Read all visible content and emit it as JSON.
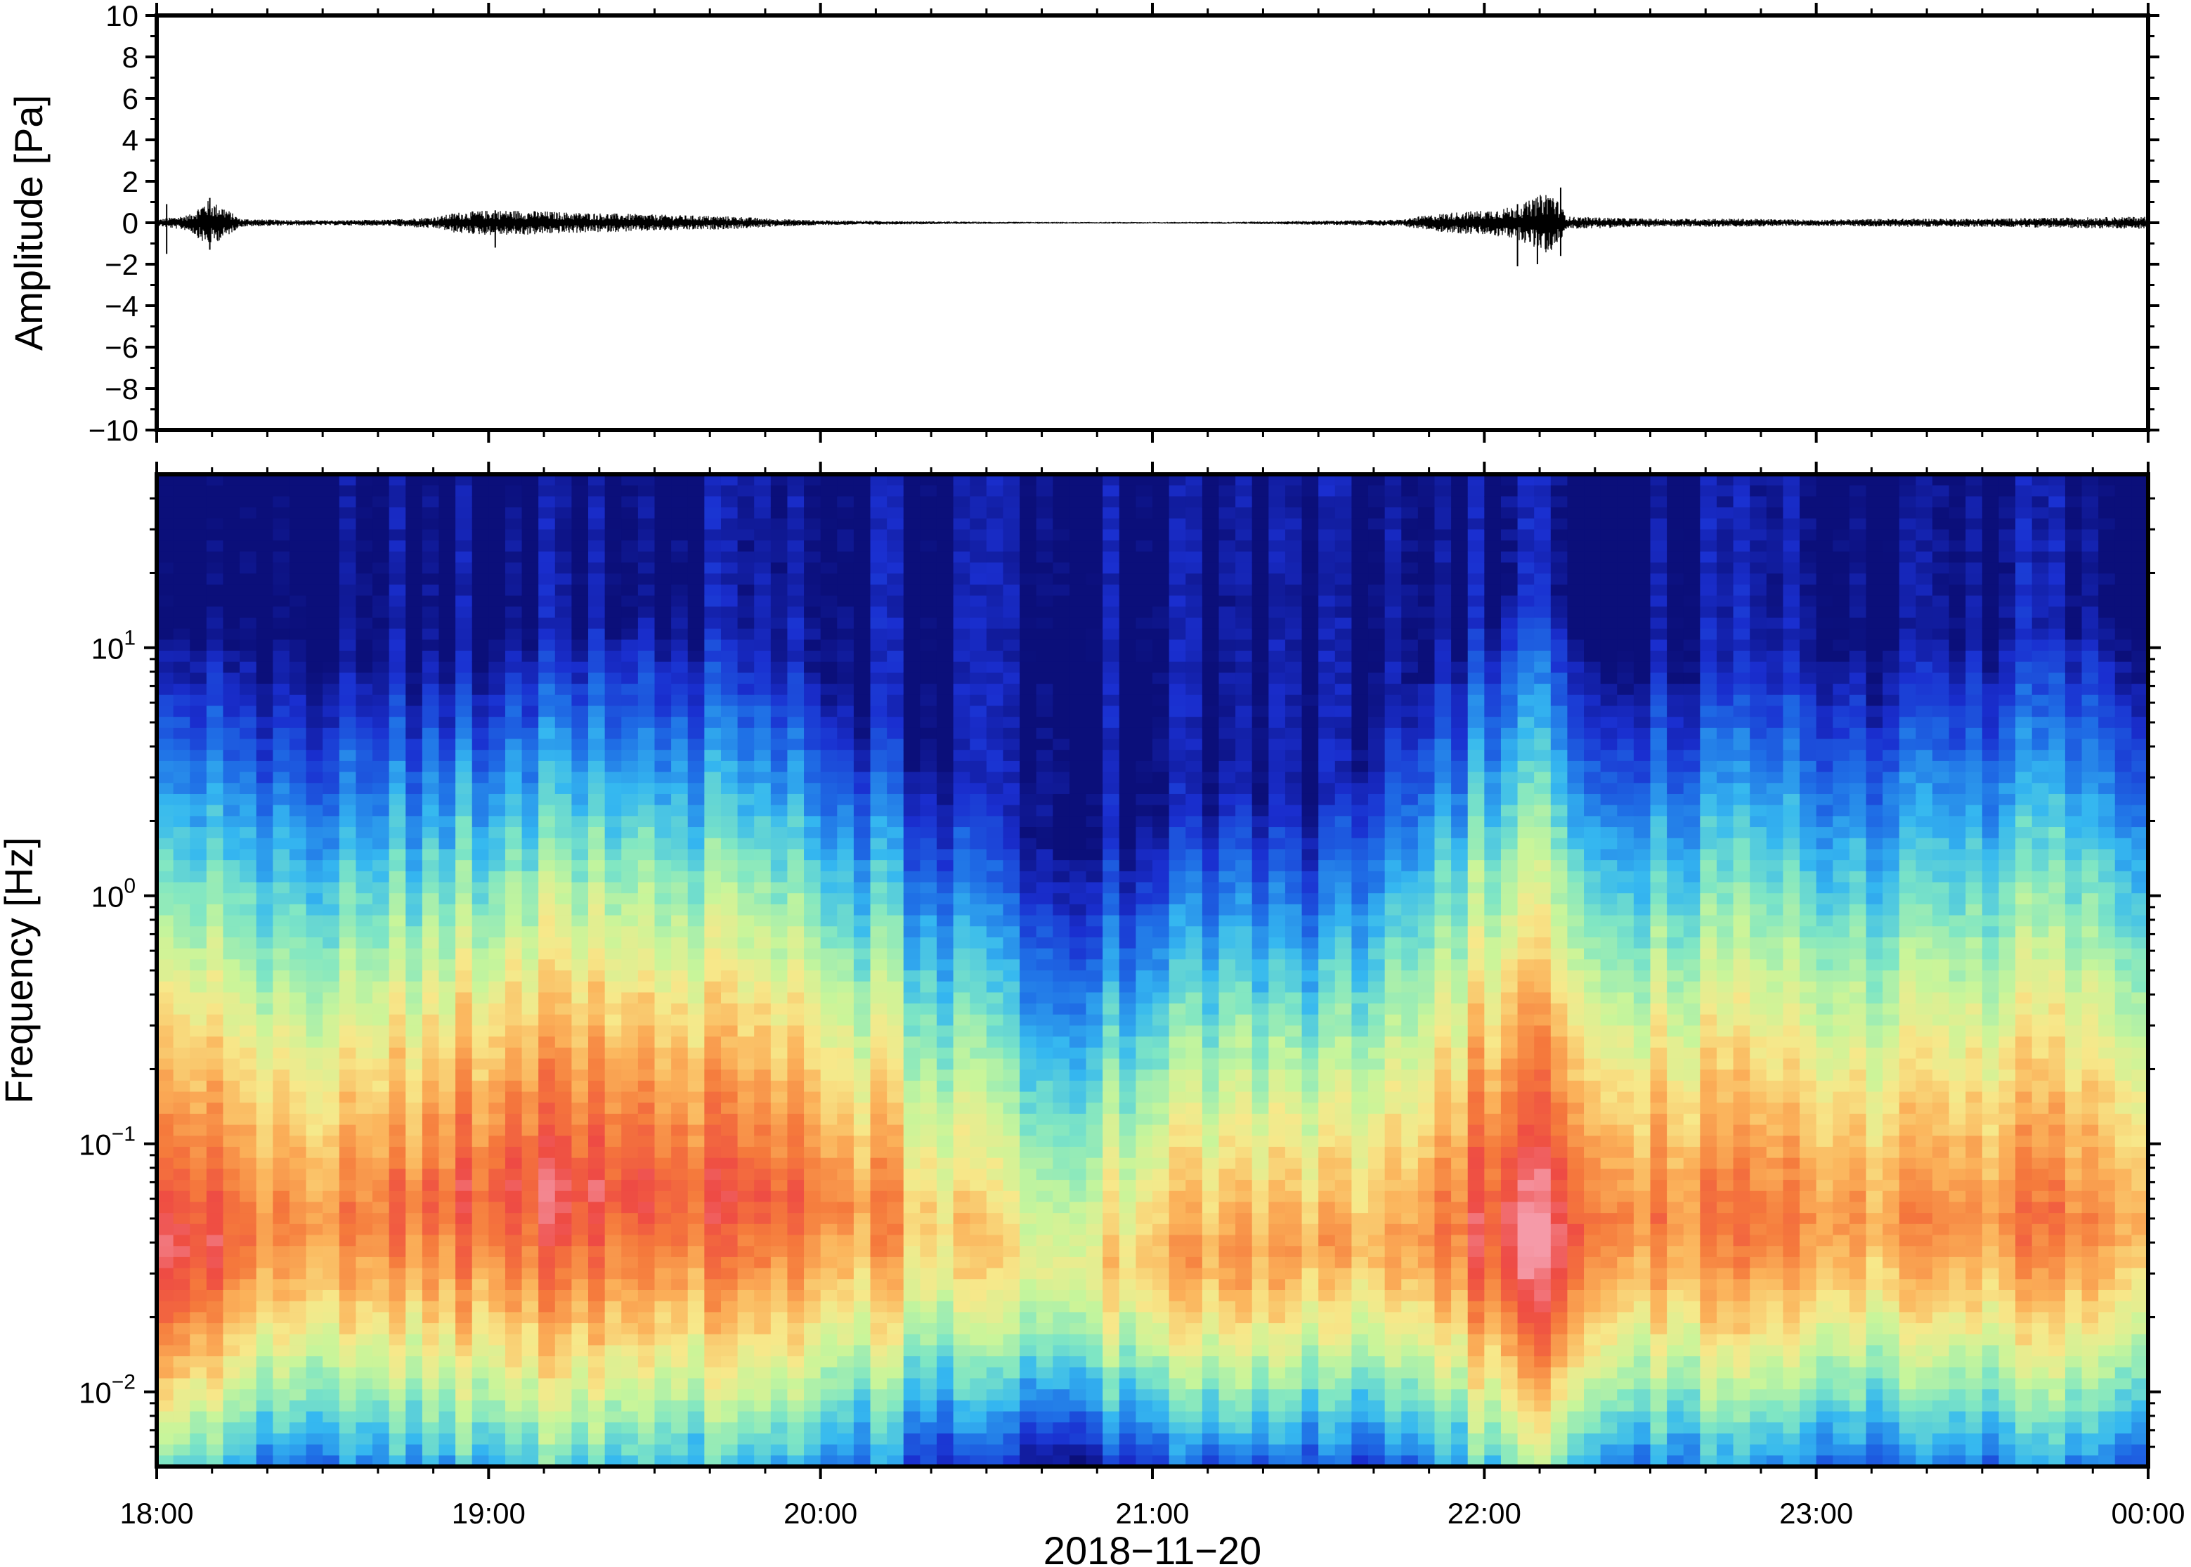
{
  "chart_data": [
    {
      "type": "line",
      "panel": "waveform",
      "ylabel": "Amplitude [Pa]",
      "ylim": [
        -10,
        10
      ],
      "y_ticks": [
        10,
        8,
        6,
        4,
        2,
        0,
        -2,
        -4,
        -6,
        -8,
        -10
      ],
      "y_tick_labels": [
        "10",
        "8",
        "6",
        "4",
        "2",
        "0",
        "−2",
        "−4",
        "−6",
        "−8",
        "−10"
      ],
      "xlim": [
        "2018-11-20 18:00",
        "2018-11-21 00:00"
      ],
      "envelope_hours": [
        18.0,
        18.1,
        18.15,
        18.2,
        18.25,
        18.35,
        18.5,
        18.7,
        18.85,
        18.9,
        19.0,
        19.1,
        19.25,
        19.5,
        19.75,
        19.85,
        20.0,
        20.25,
        20.5,
        20.75,
        21.0,
        21.25,
        21.5,
        21.75,
        21.8,
        21.9,
        22.0,
        22.1,
        22.15,
        22.2,
        22.25,
        22.5,
        22.75,
        23.0,
        23.25,
        23.5,
        23.75,
        24.0
      ],
      "envelope_pa": [
        0.15,
        0.4,
        1.1,
        0.8,
        0.2,
        0.15,
        0.12,
        0.15,
        0.3,
        0.5,
        0.6,
        0.6,
        0.5,
        0.4,
        0.3,
        0.2,
        0.12,
        0.08,
        0.05,
        0.04,
        0.04,
        0.05,
        0.1,
        0.15,
        0.3,
        0.5,
        0.6,
        0.8,
        1.2,
        1.6,
        0.3,
        0.2,
        0.2,
        0.15,
        0.2,
        0.2,
        0.25,
        0.3
      ],
      "spikes": [
        {
          "hour": 18.03,
          "max": 0.9,
          "min": -1.5
        },
        {
          "hour": 18.16,
          "max": 1.2,
          "min": -1.3
        },
        {
          "hour": 19.02,
          "max": 0.6,
          "min": -1.2
        },
        {
          "hour": 22.1,
          "max": 0.9,
          "min": -2.1
        },
        {
          "hour": 22.16,
          "max": 0.7,
          "min": -2.0
        },
        {
          "hour": 22.23,
          "max": 1.7,
          "min": -1.6
        }
      ]
    },
    {
      "type": "heatmap",
      "panel": "spectrogram",
      "ylabel": "Frequency [Hz]",
      "y_scale": "log",
      "ylim": [
        0.005,
        50
      ],
      "y_ticks": [
        10,
        1,
        0.1,
        0.01
      ],
      "y_tick_labels": [
        {
          "base": "10",
          "exp": "1"
        },
        {
          "base": "10",
          "exp": "0"
        },
        {
          "base": "10",
          "exp": "−1"
        },
        {
          "base": "10",
          "exp": "−2"
        }
      ],
      "xlabel": "2018−11−20",
      "xlim": [
        "2018-11-20 18:00",
        "2018-11-21 00:00"
      ],
      "x_ticks": [
        "18:00",
        "19:00",
        "20:00",
        "21:00",
        "22:00",
        "23:00",
        "00:00"
      ],
      "colormap": [
        "#0b0f7a",
        "#1a2fd0",
        "#1f6fe6",
        "#35b8f0",
        "#7fe6c4",
        "#c8f59a",
        "#f7e88a",
        "#fbb25a",
        "#f57a3c",
        "#ee4a44",
        "#f59aa8"
      ],
      "time_hours": [
        18.0,
        18.15,
        18.3,
        18.6,
        18.85,
        19.1,
        19.5,
        19.75,
        20.0,
        20.25,
        20.5,
        20.7,
        21.0,
        21.25,
        21.5,
        21.75,
        22.0,
        22.15,
        22.3,
        22.5,
        23.0,
        23.5,
        24.0
      ],
      "cutoff_hz": [
        12,
        15,
        11,
        9,
        10,
        12,
        14,
        12,
        8,
        5,
        2.5,
        1.5,
        2.0,
        3.0,
        2.0,
        6,
        15,
        18,
        12,
        9,
        10,
        12,
        14
      ],
      "peak_hz": [
        0.035,
        0.04,
        0.045,
        0.05,
        0.06,
        0.065,
        0.065,
        0.06,
        0.06,
        0.05,
        0.04,
        0.03,
        0.035,
        0.035,
        0.04,
        0.04,
        0.05,
        0.04,
        0.045,
        0.05,
        0.05,
        0.05,
        0.05
      ],
      "peak_level": [
        0.98,
        0.95,
        0.82,
        0.78,
        0.85,
        0.9,
        0.88,
        0.84,
        0.8,
        0.72,
        0.6,
        0.55,
        0.68,
        0.72,
        0.68,
        0.7,
        0.9,
        0.96,
        0.9,
        0.78,
        0.76,
        0.76,
        0.78
      ]
    }
  ]
}
